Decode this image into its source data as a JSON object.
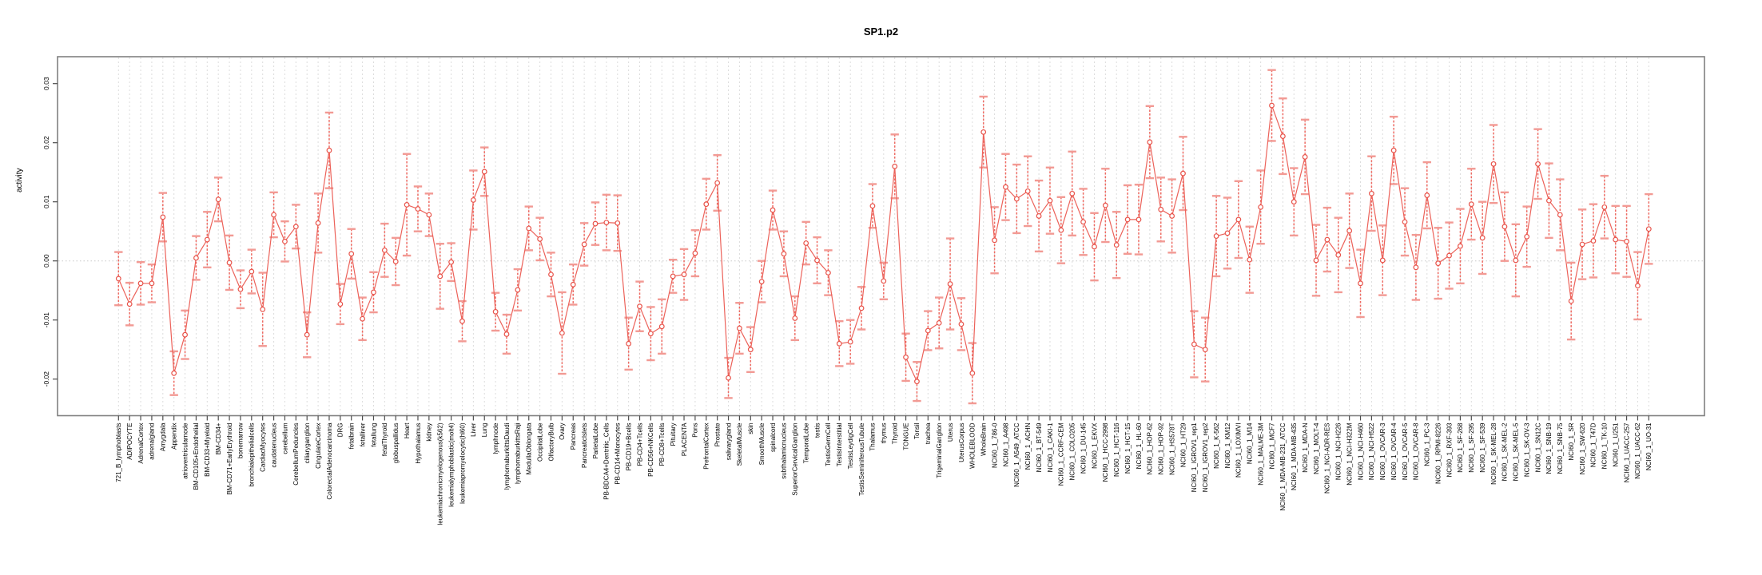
{
  "chart_data": {
    "type": "line",
    "title": "SP1.p2",
    "xlabel": "",
    "ylabel": "activity",
    "series_name": "activity",
    "point_style": "open-circle",
    "error_bars": true,
    "legend": "none",
    "grid": "vertical-dashed-per-category",
    "zero_reference_line": true,
    "x_tick_rotation": -90,
    "y_ticks": [
      0.03,
      0.02,
      0.01,
      0.0,
      -0.01,
      -0.02
    ],
    "ylim": [
      -0.026,
      0.0345
    ],
    "colors": {
      "series_line": "#ec625a",
      "point_stroke": "#e8534a",
      "error_stem": "#ee6a62",
      "error_cap": "#f29a94",
      "gridline": "#dcdcdc",
      "zero_line": "#c9c9c9",
      "axis_box": "#808080",
      "tick": "#4d4d4d",
      "text": "#000000",
      "background": "#ffffff"
    },
    "categories": [
      "721_B_lymphoblasts",
      "ADIPOCYTE",
      "AdrenalCortex",
      "adrenalgland",
      "Amygdala",
      "Appendix",
      "atrioventricularnode",
      "BM-CD105+Endothelial",
      "BM-CD33+Myeloid",
      "BM-CD34+",
      "BM-CD71+EarlyErythroid",
      "bonemarrow",
      "bronchialepithelialcells",
      "CardiacMyocytes",
      "caudatenucleus",
      "cerebellum",
      "CerebellumPeduncles",
      "ciliaryganglion",
      "CingulateCortex",
      "ColorectalAdenocarcinoma",
      "DRG",
      "fetalbrain",
      "fetalliver",
      "fetallung",
      "fetalThyroid",
      "globuspallidus",
      "Heart",
      "Hypothalamus",
      "kidney",
      "leukemiachronicmyelogenous(k562)",
      "leukemialymphoblastic(molt4)",
      "leukemiapromyelocytic(hl60)",
      "Liver",
      "Lung",
      "lymphnode",
      "lymphomaburkittsDaudi",
      "lymphomaburkittsRaji",
      "MedullaOblongata",
      "OccipitalLobe",
      "OlfactoryBulb",
      "Ovary",
      "Pancreas",
      "PancreaticIslets",
      "ParietalLobe",
      "PB-BDCA4+Dentritic_Cells",
      "PB-CD14+Monocytes",
      "PB-CD19+Bcells",
      "PB-CD4+Tcells",
      "PB-CD56+NKCells",
      "PB-CD8+Tcells",
      "Pituitary",
      "PLACENTA",
      "Pons",
      "PrefrontalCortex",
      "Prostate",
      "salivarygland",
      "SkeletalMuscle",
      "skin",
      "SmoothMuscle",
      "spinalcord",
      "subthalamicnucleus",
      "SuperiorCervicalGanglion",
      "TemporalLobe",
      "testis",
      "TestisGermCell",
      "TestisInterstitial",
      "TestisLeydigCell",
      "TestisSeminiferousTubule",
      "Thalamus",
      "thymus",
      "Thyroid",
      "TONGUE",
      "Tonsil",
      "trachea",
      "TrigeminalGanglion",
      "Uterus",
      "UterusCorpus",
      "WHOLEBLOOD",
      "WholeBrain",
      "NCI60_1_786-0",
      "NCI60_1_A498",
      "NCI60_1_A549_ATCC",
      "NCI60_1_ACHN",
      "NCI60_1_BT-549",
      "NCI60_1_CAKI-1",
      "NCI60_1_CCRF-CEM",
      "NCI60_1_COLO205",
      "NCI60_1_DU-145",
      "NCI60_1_EKVX",
      "NCI60_1_HCC-2998",
      "NCI60_1_HCT-116",
      "NCI60_1_HCT-15",
      "NCI60_1_HL-60",
      "NCI60_1_HOP-62",
      "NCI60_1_HOP-92",
      "NCI60_1_HS578T",
      "NCI60_1_HT29",
      "NCI60_1_IGROV1_rep1",
      "NCI60_1_IGROV1_rep2",
      "NCI60_1_K-562",
      "NCI60_1_KM12",
      "NCI60_1_LOXIMVI",
      "NCI60_1_M14",
      "NCI60_1_MALME-3M",
      "NCI60_1_MCF7",
      "NCI60_1_MDA-MB-231_ATCC",
      "NCI60_1_MDA-MB-435",
      "NCI60_1_MDA-N",
      "NCI60_1_MOLT-4",
      "NCI60_1_NCI-ADR-RES",
      "NCI60_1_NCI-H226",
      "NCI60_1_NCI-H322M",
      "NCI60_1_NCI-H460",
      "NCI60_1_NCI-H522",
      "NCI60_1_OVCAR-3",
      "NCI60_1_OVCAR-4",
      "NCI60_1_OVCAR-5",
      "NCI60_1_OVCAR-8",
      "NCI60_1_PC-3",
      "NCI60_1_RPMI-8226",
      "NCI60_1_RXF-393",
      "NCI60_1_SF-268",
      "NCI60_1_SF-295",
      "NCI60_1_SF-539",
      "NCI60_1_SK-MEL-28",
      "NCI60_1_SK-MEL-2",
      "NCI60_1_SK-MEL-5",
      "NCI60_1_SK-OV-3",
      "NCI60_1_SN12C",
      "NCI60_1_SNB-19",
      "NCI60_1_SNB-75",
      "NCI60_1_SR",
      "NCI60_1_SW-620",
      "NCI60_1_T47D",
      "NCI60_1_TK-10",
      "NCI60_1_U251",
      "NCI60_1_UACC-257",
      "NCI60_1_UACC-62",
      "NCI60_1_UO-31"
    ],
    "values": [
      -0.003,
      -0.0073,
      -0.0038,
      -0.0038,
      0.0074,
      -0.019,
      -0.0125,
      0.0005,
      0.0036,
      0.0104,
      -0.0003,
      -0.0048,
      -0.0018,
      -0.0082,
      0.0078,
      0.0033,
      0.0058,
      -0.0125,
      0.0064,
      0.0187,
      -0.0073,
      0.0012,
      -0.0098,
      -0.0053,
      0.0018,
      -0.0001,
      0.0095,
      0.0088,
      0.0078,
      -0.0026,
      -0.0002,
      -0.0102,
      0.0103,
      0.0151,
      -0.0086,
      -0.0124,
      -0.0049,
      0.0055,
      0.0037,
      -0.0023,
      -0.0122,
      -0.004,
      0.0028,
      0.0063,
      0.0065,
      0.0064,
      -0.014,
      -0.0077,
      -0.0123,
      -0.0111,
      -0.0026,
      -0.0023,
      0.0013,
      0.0096,
      0.0132,
      -0.0198,
      -0.0114,
      -0.015,
      -0.0035,
      0.0086,
      0.0012,
      -0.0097,
      0.003,
      0.0001,
      -0.002,
      -0.014,
      -0.0137,
      -0.008,
      0.0093,
      -0.0034,
      0.016,
      -0.0163,
      -0.0204,
      -0.0118,
      -0.0105,
      -0.0039,
      -0.0107,
      -0.019,
      0.0218,
      0.0035,
      0.0125,
      0.0105,
      0.0118,
      0.0076,
      0.0102,
      0.0052,
      0.0114,
      0.0066,
      0.0024,
      0.0094,
      0.0027,
      0.007,
      0.007,
      0.0201,
      0.0087,
      0.0076,
      0.0148,
      -0.0141,
      -0.015,
      0.0042,
      0.0047,
      0.007,
      0.0002,
      0.0091,
      0.0263,
      0.0211,
      0.01,
      0.0176,
      0.0001,
      0.0036,
      0.001,
      0.0051,
      -0.0038,
      0.0114,
      0.0001,
      0.0187,
      0.0066,
      -0.0011,
      0.0111,
      -0.0004,
      0.0009,
      0.0025,
      0.0096,
      0.0039,
      0.0164,
      0.0058,
      0.0001,
      0.0041,
      0.0164,
      0.0102,
      0.0078,
      -0.0068,
      0.0028,
      0.0034,
      0.0091,
      0.0036,
      0.0033,
      -0.0042,
      0.0054
    ],
    "errors": [
      0.0045,
      0.0036,
      0.0036,
      0.0032,
      0.0041,
      0.0037,
      0.0041,
      0.0037,
      0.0047,
      0.0037,
      0.0046,
      0.0032,
      0.0037,
      0.0062,
      0.0038,
      0.0034,
      0.0037,
      0.0038,
      0.005,
      0.0064,
      0.0034,
      0.0042,
      0.0036,
      0.0034,
      0.0045,
      0.004,
      0.0086,
      0.0038,
      0.0036,
      0.0055,
      0.0032,
      0.0034,
      0.005,
      0.0041,
      0.0032,
      0.0033,
      0.0035,
      0.0037,
      0.0036,
      0.0037,
      0.0069,
      0.0034,
      0.0036,
      0.0036,
      0.0047,
      0.0047,
      0.0044,
      0.0042,
      0.0045,
      0.0046,
      0.0028,
      0.0043,
      0.0039,
      0.0043,
      0.0047,
      0.0034,
      0.0043,
      0.0038,
      0.0035,
      0.0033,
      0.0038,
      0.0037,
      0.0036,
      0.0039,
      0.0038,
      0.0038,
      0.0037,
      0.0036,
      0.0037,
      0.0031,
      0.0054,
      0.004,
      0.0033,
      0.0033,
      0.0043,
      0.0077,
      0.0044,
      0.0051,
      0.006,
      0.0056,
      0.0056,
      0.0058,
      0.0059,
      0.006,
      0.0056,
      0.0056,
      0.0071,
      0.0056,
      0.0057,
      0.0062,
      0.0056,
      0.0058,
      0.0059,
      0.0061,
      0.0054,
      0.0062,
      0.0062,
      0.0056,
      0.0054,
      0.0068,
      0.006,
      0.0065,
      0.0056,
      0.0062,
      0.006,
      0.0064,
      0.0057,
      0.0063,
      0.006,
      0.0054,
      0.0063,
      0.0063,
      0.0057,
      0.0063,
      0.0059,
      0.0057,
      0.0057,
      0.0055,
      0.0056,
      0.006,
      0.0056,
      0.0063,
      0.006,
      0.0061,
      0.0066,
      0.0058,
      0.0061,
      0.0051,
      0.0059,
      0.0063,
      0.006,
      0.0065,
      0.0059,
      0.0062,
      0.0053,
      0.0057,
      0.006,
      0.0057,
      0.0059
    ]
  }
}
